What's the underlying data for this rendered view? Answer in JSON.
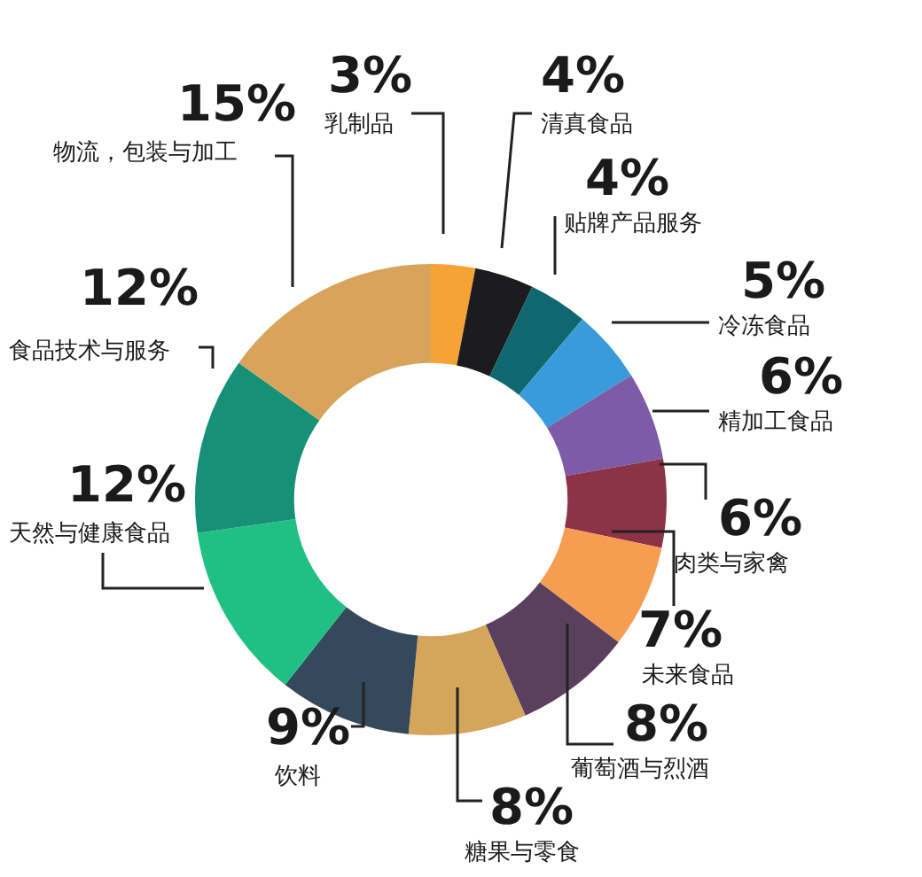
{
  "chart_data": {
    "type": "donut",
    "categories": [
      "乳制品",
      "清真食品",
      "贴牌产品服务",
      "冷冻食品",
      "精加工食品",
      "肉类与家禽",
      "未来食品",
      "葡萄酒与烈酒",
      "糖果与零食",
      "饮料",
      "天然与健康食品",
      "食品技术与服务",
      "物流，包装与加工"
    ],
    "values": [
      3,
      4,
      4,
      5,
      6,
      6,
      7,
      8,
      8,
      9,
      12,
      12,
      15
    ],
    "value_labels": [
      "3%",
      "4%",
      "4%",
      "5%",
      "6%",
      "6%",
      "7%",
      "8%",
      "8%",
      "9%",
      "12%",
      "12%",
      "15%"
    ],
    "colors": [
      "#f7a234",
      "#1c1c1e",
      "#0f6870",
      "#3a9bdc",
      "#7d5ba6",
      "#8c3348",
      "#f79d52",
      "#5b405d",
      "#d6a55c",
      "#34495b",
      "#20c085",
      "#179078",
      "#d8a45c"
    ]
  }
}
